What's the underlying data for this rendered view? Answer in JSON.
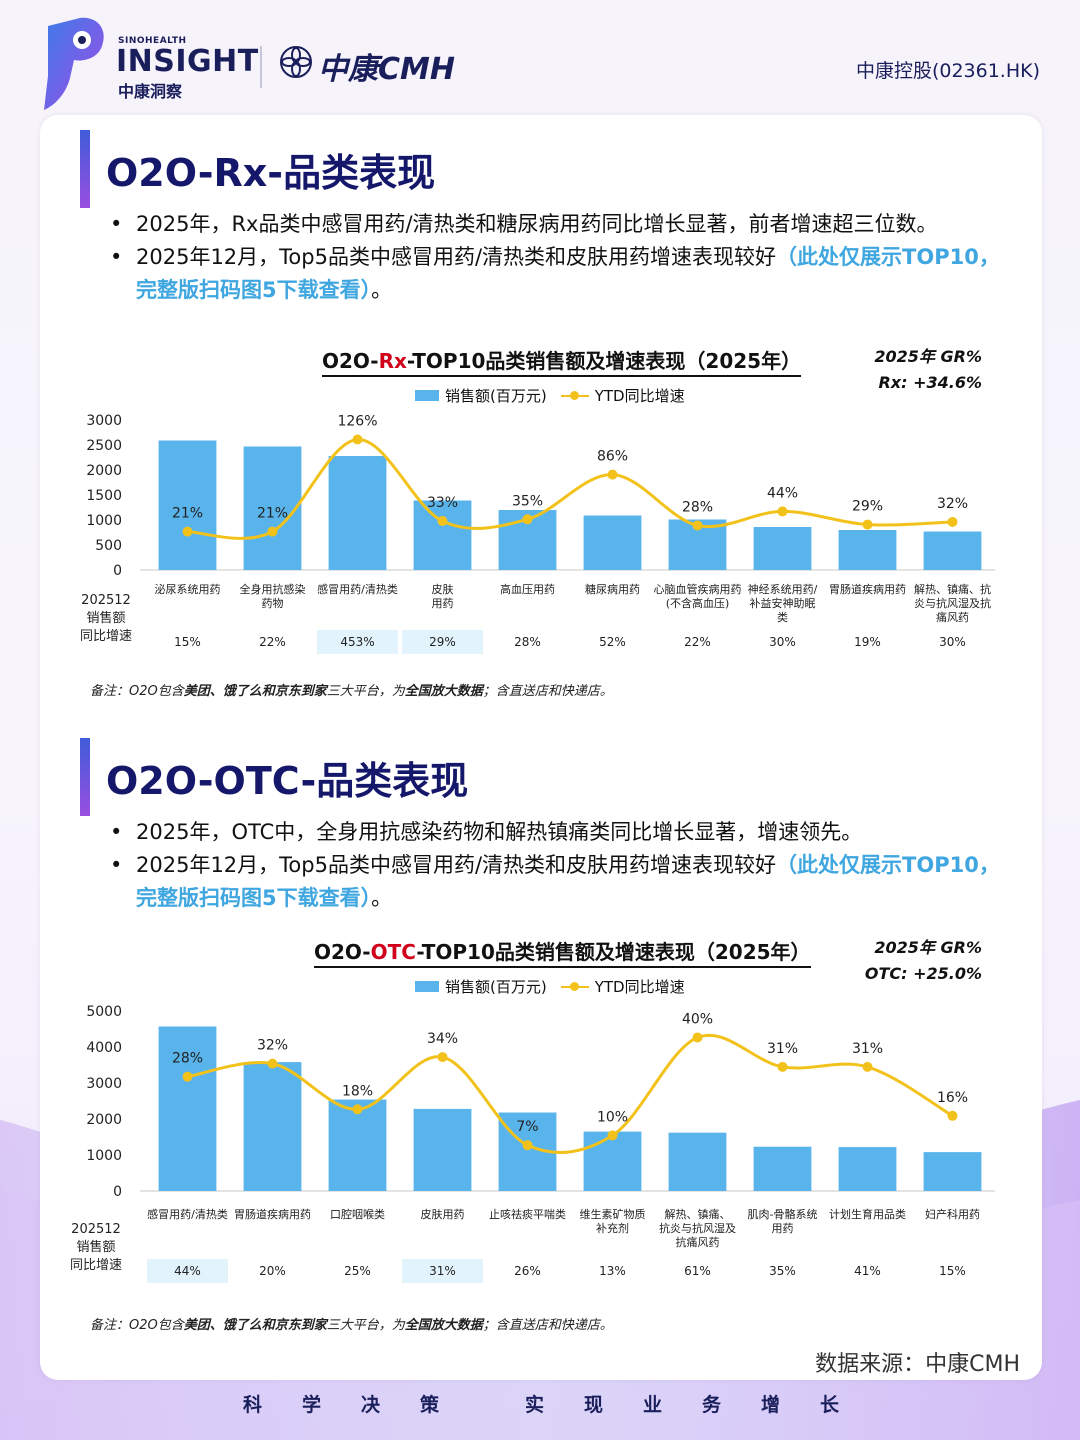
{
  "header": {
    "brand_small": "SINOHEALTH",
    "brand_big": "INSIGHT",
    "brand_cn": "中康洞察",
    "cmh_logo": "中康CMH",
    "stock": "中康控股(02361.HK)"
  },
  "sections": [
    {
      "title": "O2O-Rx-品类表现",
      "bullet1": "2025年，Rx品类中感冒用药/清热类和糖尿病用药同比增长显著，前者增速超三位数。",
      "bullet2_plain": "2025年12月，Top5品类中感冒用药/清热类和皮肤用药增速表现较好",
      "bullet2_highlight": "（此处仅展示TOP10，完整版扫码图5下载查看）",
      "bullet2_end": "。",
      "chart_title_pre": "O2O-",
      "chart_title_red": "Rx",
      "chart_title_post": "-TOP10品类销售额及增速表现（2025年）",
      "gr_line1": "2025年 GR%",
      "gr_line2": "Rx: +34.6%",
      "note_parts": [
        "备注：O2O包含",
        "美团、饿了么和京东到家",
        "三大平台，为",
        "全国放大数据",
        "；含直送店和快递店。"
      ]
    },
    {
      "title": "O2O-OTC-品类表现",
      "bullet1": "2025年，OTC中，全身用抗感染药物和解热镇痛类同比增长显著，增速领先。",
      "bullet2_plain": "2025年12月，Top5品类中感冒用药/清热类和皮肤用药增速表现较好",
      "bullet2_highlight": "（此处仅展示TOP10，完整版扫码图5下载查看）",
      "bullet2_end": "。",
      "chart_title_pre": "O2O-",
      "chart_title_red": "OTC",
      "chart_title_post": "-TOP10品类销售额及增速表现（2025年）",
      "gr_line1": "2025年 GR%",
      "gr_line2": "OTC: +25.0%",
      "note_parts": [
        "备注：O2O包含",
        "美团、饿了么和京东到家",
        "三大平台，为",
        "全国放大数据",
        "；含直送店和快递店。"
      ]
    }
  ],
  "legend": {
    "bar": "销售额(百万元)",
    "line": "YTD同比增速"
  },
  "table_label": [
    "202512",
    "销售额",
    "同比增速"
  ],
  "chart_data": [
    {
      "type": "bar",
      "title": "O2O-Rx-TOP10品类销售额及增速表现（2025年）",
      "ylim": [
        0,
        3000
      ],
      "yticks": [
        0,
        500,
        1000,
        1500,
        2000,
        2500,
        3000
      ],
      "categories": [
        [
          "泌尿系统用药"
        ],
        [
          "全身用抗感染",
          "药物"
        ],
        [
          "感冒用药/清热类"
        ],
        [
          "皮肤",
          "用药"
        ],
        [
          "高血压用药"
        ],
        [
          "糖尿病用药"
        ],
        [
          "心脑血管疾病用药",
          "(不含高血压)"
        ],
        [
          "神经系统用药/",
          "补益安神助眠",
          "类"
        ],
        [
          "胃肠道疾病用药"
        ],
        [
          "解热、镇痛、抗",
          "炎与抗风湿及抗",
          "痛风药"
        ]
      ],
      "series": [
        {
          "name": "销售额(百万元)",
          "type": "bar",
          "values": [
            2590,
            2470,
            2280,
            1390,
            1200,
            1090,
            1010,
            860,
            800,
            770
          ]
        },
        {
          "name": "YTD同比增速",
          "type": "line",
          "values": [
            21,
            21,
            126,
            33,
            35,
            86,
            28,
            44,
            29,
            32
          ],
          "labels": [
            "21%",
            "21%",
            "126%",
            "33%",
            "35%",
            "86%",
            "28%",
            "44%",
            "29%",
            "32%"
          ]
        }
      ],
      "dec_growth": [
        "15%",
        "22%",
        "453%",
        "29%",
        "28%",
        "52%",
        "22%",
        "30%",
        "19%",
        "30%"
      ],
      "dec_highlight": [
        false,
        false,
        true,
        true,
        false,
        false,
        false,
        false,
        false,
        false
      ]
    },
    {
      "type": "bar",
      "title": "O2O-OTC-TOP10品类销售额及增速表现（2025年）",
      "ylim": [
        0,
        5000
      ],
      "yticks": [
        0,
        1000,
        2000,
        3000,
        4000,
        5000
      ],
      "categories": [
        [
          "感冒用药/清热类"
        ],
        [
          "胃肠道疾病用药"
        ],
        [
          "口腔咽喉类"
        ],
        [
          "皮肤用药"
        ],
        [
          "止咳祛痰平喘类"
        ],
        [
          "维生素矿物质",
          "补充剂"
        ],
        [
          "解热、镇痛、",
          "抗炎与抗风湿及",
          "抗痛风药"
        ],
        [
          "肌肉-骨骼系统",
          "用药"
        ],
        [
          "计划生育用品类"
        ],
        [
          "妇产科用药"
        ]
      ],
      "series": [
        {
          "name": "销售额(百万元)",
          "type": "bar",
          "values": [
            4570,
            3580,
            2540,
            2280,
            2180,
            1650,
            1620,
            1230,
            1220,
            1080
          ]
        },
        {
          "name": "YTD同比增速",
          "type": "line",
          "values": [
            28,
            32,
            18,
            34,
            7,
            10,
            40,
            31,
            31,
            16
          ],
          "labels": [
            "28%",
            "32%",
            "18%",
            "34%",
            "7%",
            "10%",
            "40%",
            "31%",
            "31%",
            "16%"
          ]
        }
      ],
      "dec_growth": [
        "44%",
        "20%",
        "25%",
        "31%",
        "26%",
        "13%",
        "61%",
        "35%",
        "41%",
        "15%"
      ],
      "dec_highlight": [
        true,
        false,
        false,
        true,
        false,
        false,
        false,
        false,
        false,
        false
      ]
    }
  ],
  "source": "数据来源：中康CMH",
  "slogan": [
    "科",
    "学",
    "决",
    "策",
    "实",
    "现",
    "业",
    "务",
    "增",
    "长"
  ],
  "colors": {
    "bar": "#5ab4ec",
    "line": "#f2c21b",
    "title_navy": "#15186a",
    "highlight_cell": "#e2f3fb",
    "red": "#d0021b"
  }
}
